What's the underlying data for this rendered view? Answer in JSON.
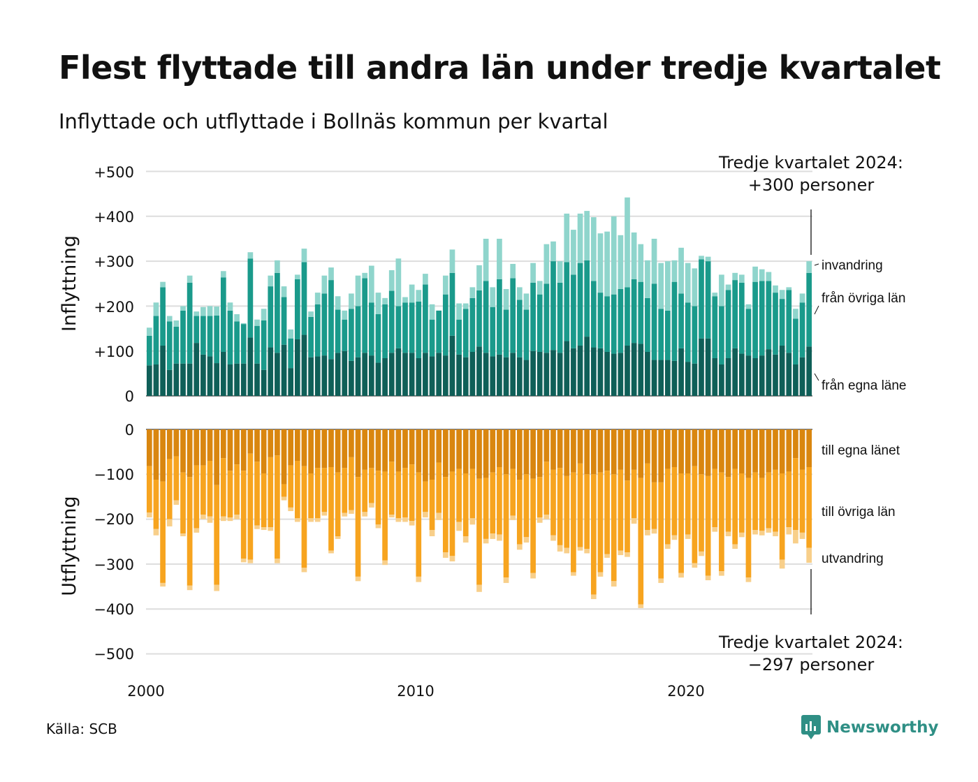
{
  "header": {
    "title": "Flest flyttade till andra län under tredje kvartalet",
    "subtitle": "Inflyttade och utflyttade i Bollnäs kommun per kvartal"
  },
  "footer": {
    "source": "Källa: SCB",
    "brand": "Newsworthy"
  },
  "chart_data": {
    "type": "bar",
    "stacked": true,
    "diverging": true,
    "x_start": "2000 Q1",
    "x_end": "2024 Q3",
    "x_ticks": [
      "2000",
      "2010",
      "2020"
    ],
    "y_ticks_top": [
      "0",
      "+100",
      "+200",
      "+300",
      "+400",
      "+500"
    ],
    "y_ticks_bottom": [
      "0",
      "−100",
      "−200",
      "−300",
      "−400",
      "−500"
    ],
    "ylabel_top": "Inflyttning",
    "ylabel_bottom": "Utflyttning",
    "ylim_top": [
      0,
      500
    ],
    "ylim_bottom": [
      -500,
      0
    ],
    "grid": true,
    "annotations": {
      "top_line1": "Tredje kvartalet 2024:",
      "top_line2": "+300 personer",
      "bottom_line1": "Tredje kvartalet 2024:",
      "bottom_line2": "−297 personer"
    },
    "colors": {
      "in_own": "#0f5f58",
      "in_other": "#1a9a8b",
      "in_immig": "#8fd5cc",
      "out_own": "#d9860f",
      "out_other": "#f7a41f",
      "out_emig": "#f8cf8a",
      "grid": "#dddddd"
    },
    "series": [
      {
        "name": "från egna läne",
        "group": "in",
        "values": [
          68,
          70,
          112,
          58,
          72,
          72,
          72,
          118,
          92,
          88,
          73,
          98,
          70,
          72,
          72,
          130,
          72,
          58,
          108,
          96,
          114,
          62,
          126,
          136,
          86,
          88,
          90,
          82,
          96,
          100,
          78,
          86,
          96,
          90,
          74,
          84,
          96,
          106,
          96,
          96,
          84,
          96,
          88,
          96,
          90,
          134,
          92,
          86,
          98,
          110,
          96,
          88,
          92,
          86,
          96,
          86,
          80,
          100,
          98,
          96,
          102,
          96,
          122,
          106,
          112,
          132,
          108,
          106,
          98,
          94,
          96,
          112,
          118,
          116,
          98,
          80,
          80,
          80,
          78,
          106,
          76,
          72,
          128,
          128,
          84,
          70,
          84,
          106,
          94,
          90,
          84,
          90,
          104,
          92,
          112,
          96,
          70,
          86,
          110
        ]
      },
      {
        "name": "från övriga län",
        "group": "in",
        "values": [
          66,
          108,
          130,
          108,
          82,
          118,
          180,
          60,
          86,
          90,
          106,
          166,
          120,
          94,
          88,
          176,
          84,
          110,
          136,
          178,
          106,
          66,
          134,
          162,
          90,
          116,
          138,
          176,
          96,
          70,
          116,
          114,
          166,
          118,
          108,
          120,
          138,
          94,
          112,
          112,
          126,
          152,
          82,
          94,
          136,
          140,
          78,
          108,
          120,
          125,
          160,
          110,
          168,
          106,
          166,
          128,
          112,
          152,
          128,
          154,
          198,
          156,
          176,
          164,
          184,
          170,
          148,
          124,
          124,
          132,
          142,
          130,
          142,
          138,
          120,
          170,
          114,
          110,
          176,
          122,
          132,
          128,
          176,
          172,
          138,
          130,
          152,
          152,
          158,
          104,
          170,
          166,
          152,
          138,
          104,
          140,
          102,
          122,
          164
        ]
      },
      {
        "name": "invandring",
        "group": "in",
        "values": [
          18,
          30,
          12,
          12,
          14,
          10,
          16,
          10,
          20,
          22,
          20,
          14,
          18,
          16,
          2,
          14,
          14,
          26,
          24,
          28,
          24,
          20,
          10,
          30,
          12,
          26,
          40,
          28,
          30,
          20,
          34,
          68,
          12,
          82,
          48,
          14,
          46,
          106,
          12,
          40,
          26,
          24,
          34,
          0,
          42,
          52,
          36,
          12,
          24,
          56,
          94,
          44,
          90,
          46,
          32,
          28,
          36,
          44,
          30,
          88,
          44,
          48,
          108,
          100,
          110,
          110,
          142,
          132,
          144,
          174,
          120,
          200,
          104,
          84,
          84,
          100,
          102,
          110,
          48,
          102,
          88,
          84,
          8,
          10,
          8,
          70,
          12,
          16,
          18,
          10,
          34,
          26,
          20,
          16,
          20,
          6,
          22,
          20,
          26
        ]
      },
      {
        "name": "till egna länet",
        "group": "out",
        "values": [
          -82,
          -112,
          -116,
          -66,
          -60,
          -96,
          -106,
          -80,
          -80,
          -70,
          -124,
          -64,
          -92,
          -78,
          -92,
          -54,
          -72,
          -98,
          -62,
          -58,
          -122,
          -80,
          -70,
          -82,
          -98,
          -86,
          -86,
          -84,
          -96,
          -86,
          -62,
          -106,
          -90,
          -86,
          -92,
          -94,
          -72,
          -94,
          -86,
          -78,
          -96,
          -116,
          -112,
          -74,
          -106,
          -94,
          -88,
          -98,
          -88,
          -110,
          -108,
          -96,
          -84,
          -100,
          -88,
          -112,
          -100,
          -110,
          -106,
          -72,
          -90,
          -86,
          -104,
          -96,
          -76,
          -100,
          -100,
          -96,
          -92,
          -100,
          -90,
          -114,
          -90,
          -108,
          -76,
          -118,
          -118,
          -88,
          -84,
          -98,
          -98,
          -82,
          -100,
          -104,
          -88,
          -96,
          -106,
          -88,
          -98,
          -108,
          -96,
          -108,
          -96,
          -90,
          -98,
          -94,
          -64,
          -90,
          -84
        ]
      },
      {
        "name": "till övriga län",
        "group": "out",
        "values": [
          -103,
          -110,
          -226,
          -134,
          -98,
          -136,
          -242,
          -140,
          -110,
          -124,
          -222,
          -130,
          -104,
          -112,
          -196,
          -236,
          -142,
          -120,
          -156,
          -230,
          -28,
          -94,
          -128,
          -226,
          -100,
          -112,
          -98,
          -186,
          -142,
          -100,
          -118,
          -222,
          -94,
          -78,
          -120,
          -198,
          -118,
          -104,
          -110,
          -126,
          -232,
          -68,
          -112,
          -112,
          -168,
          -188,
          -118,
          -140,
          -110,
          -236,
          -136,
          -136,
          -150,
          -230,
          -104,
          -144,
          -140,
          -210,
          -90,
          -118,
          -146,
          -172,
          -160,
          -222,
          -186,
          -166,
          -268,
          -222,
          -186,
          -238,
          -180,
          -160,
          -108,
          -282,
          -148,
          -104,
          -214,
          -168,
          -152,
          -222,
          -136,
          -216,
          -172,
          -222,
          -130,
          -220,
          -122,
          -168,
          -132,
          -222,
          -128,
          -118,
          -124,
          -138,
          -192,
          -124,
          -160,
          -140,
          -180
        ]
      },
      {
        "name": "utvandring",
        "group": "out",
        "values": [
          -11,
          -14,
          -8,
          -16,
          -10,
          -6,
          -10,
          -10,
          -10,
          -14,
          -14,
          -10,
          -8,
          -10,
          -8,
          -8,
          -8,
          -6,
          -8,
          -10,
          -8,
          -8,
          -8,
          -10,
          -8,
          -8,
          -8,
          -6,
          -6,
          -8,
          -8,
          -10,
          -10,
          -10,
          -8,
          -10,
          -6,
          -8,
          -10,
          -10,
          -12,
          -12,
          -14,
          -16,
          -12,
          -12,
          -20,
          -14,
          -14,
          -16,
          -10,
          -12,
          -14,
          -12,
          -10,
          -12,
          -12,
          -12,
          -12,
          -10,
          -12,
          -14,
          -12,
          -8,
          -8,
          -10,
          -10,
          -10,
          -8,
          -12,
          -10,
          -10,
          -12,
          -8,
          -12,
          -10,
          -10,
          -10,
          -10,
          -10,
          -10,
          -10,
          -10,
          -10,
          -10,
          -10,
          -10,
          -10,
          -10,
          -10,
          -10,
          -10,
          -10,
          -10,
          -20,
          -16,
          -30,
          -14,
          -33
        ]
      }
    ],
    "series_label_text": {
      "in_immig": "invandring",
      "in_other": "från övriga län",
      "in_own": "från egna läne",
      "out_own": "till egna länet",
      "out_other": "till övriga län",
      "out_emig": "utvandring"
    }
  }
}
